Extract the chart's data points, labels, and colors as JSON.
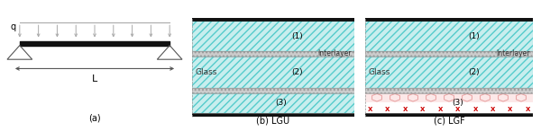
{
  "fig_width": 6.0,
  "fig_height": 1.56,
  "dpi": 100,
  "bg_color": "#ffffff",
  "panel_a_label": "(a)",
  "panel_b_label": "(b) LGU",
  "panel_c_label": "(c) LGF",
  "glass_color": "#c8eeee",
  "interlayer_color": "#cccccc",
  "border_color": "#111111",
  "red_color": "#cc0000",
  "pink_color": "#e8a0a0",
  "hatch_color": "#55cccc",
  "dot_color": "#999999"
}
